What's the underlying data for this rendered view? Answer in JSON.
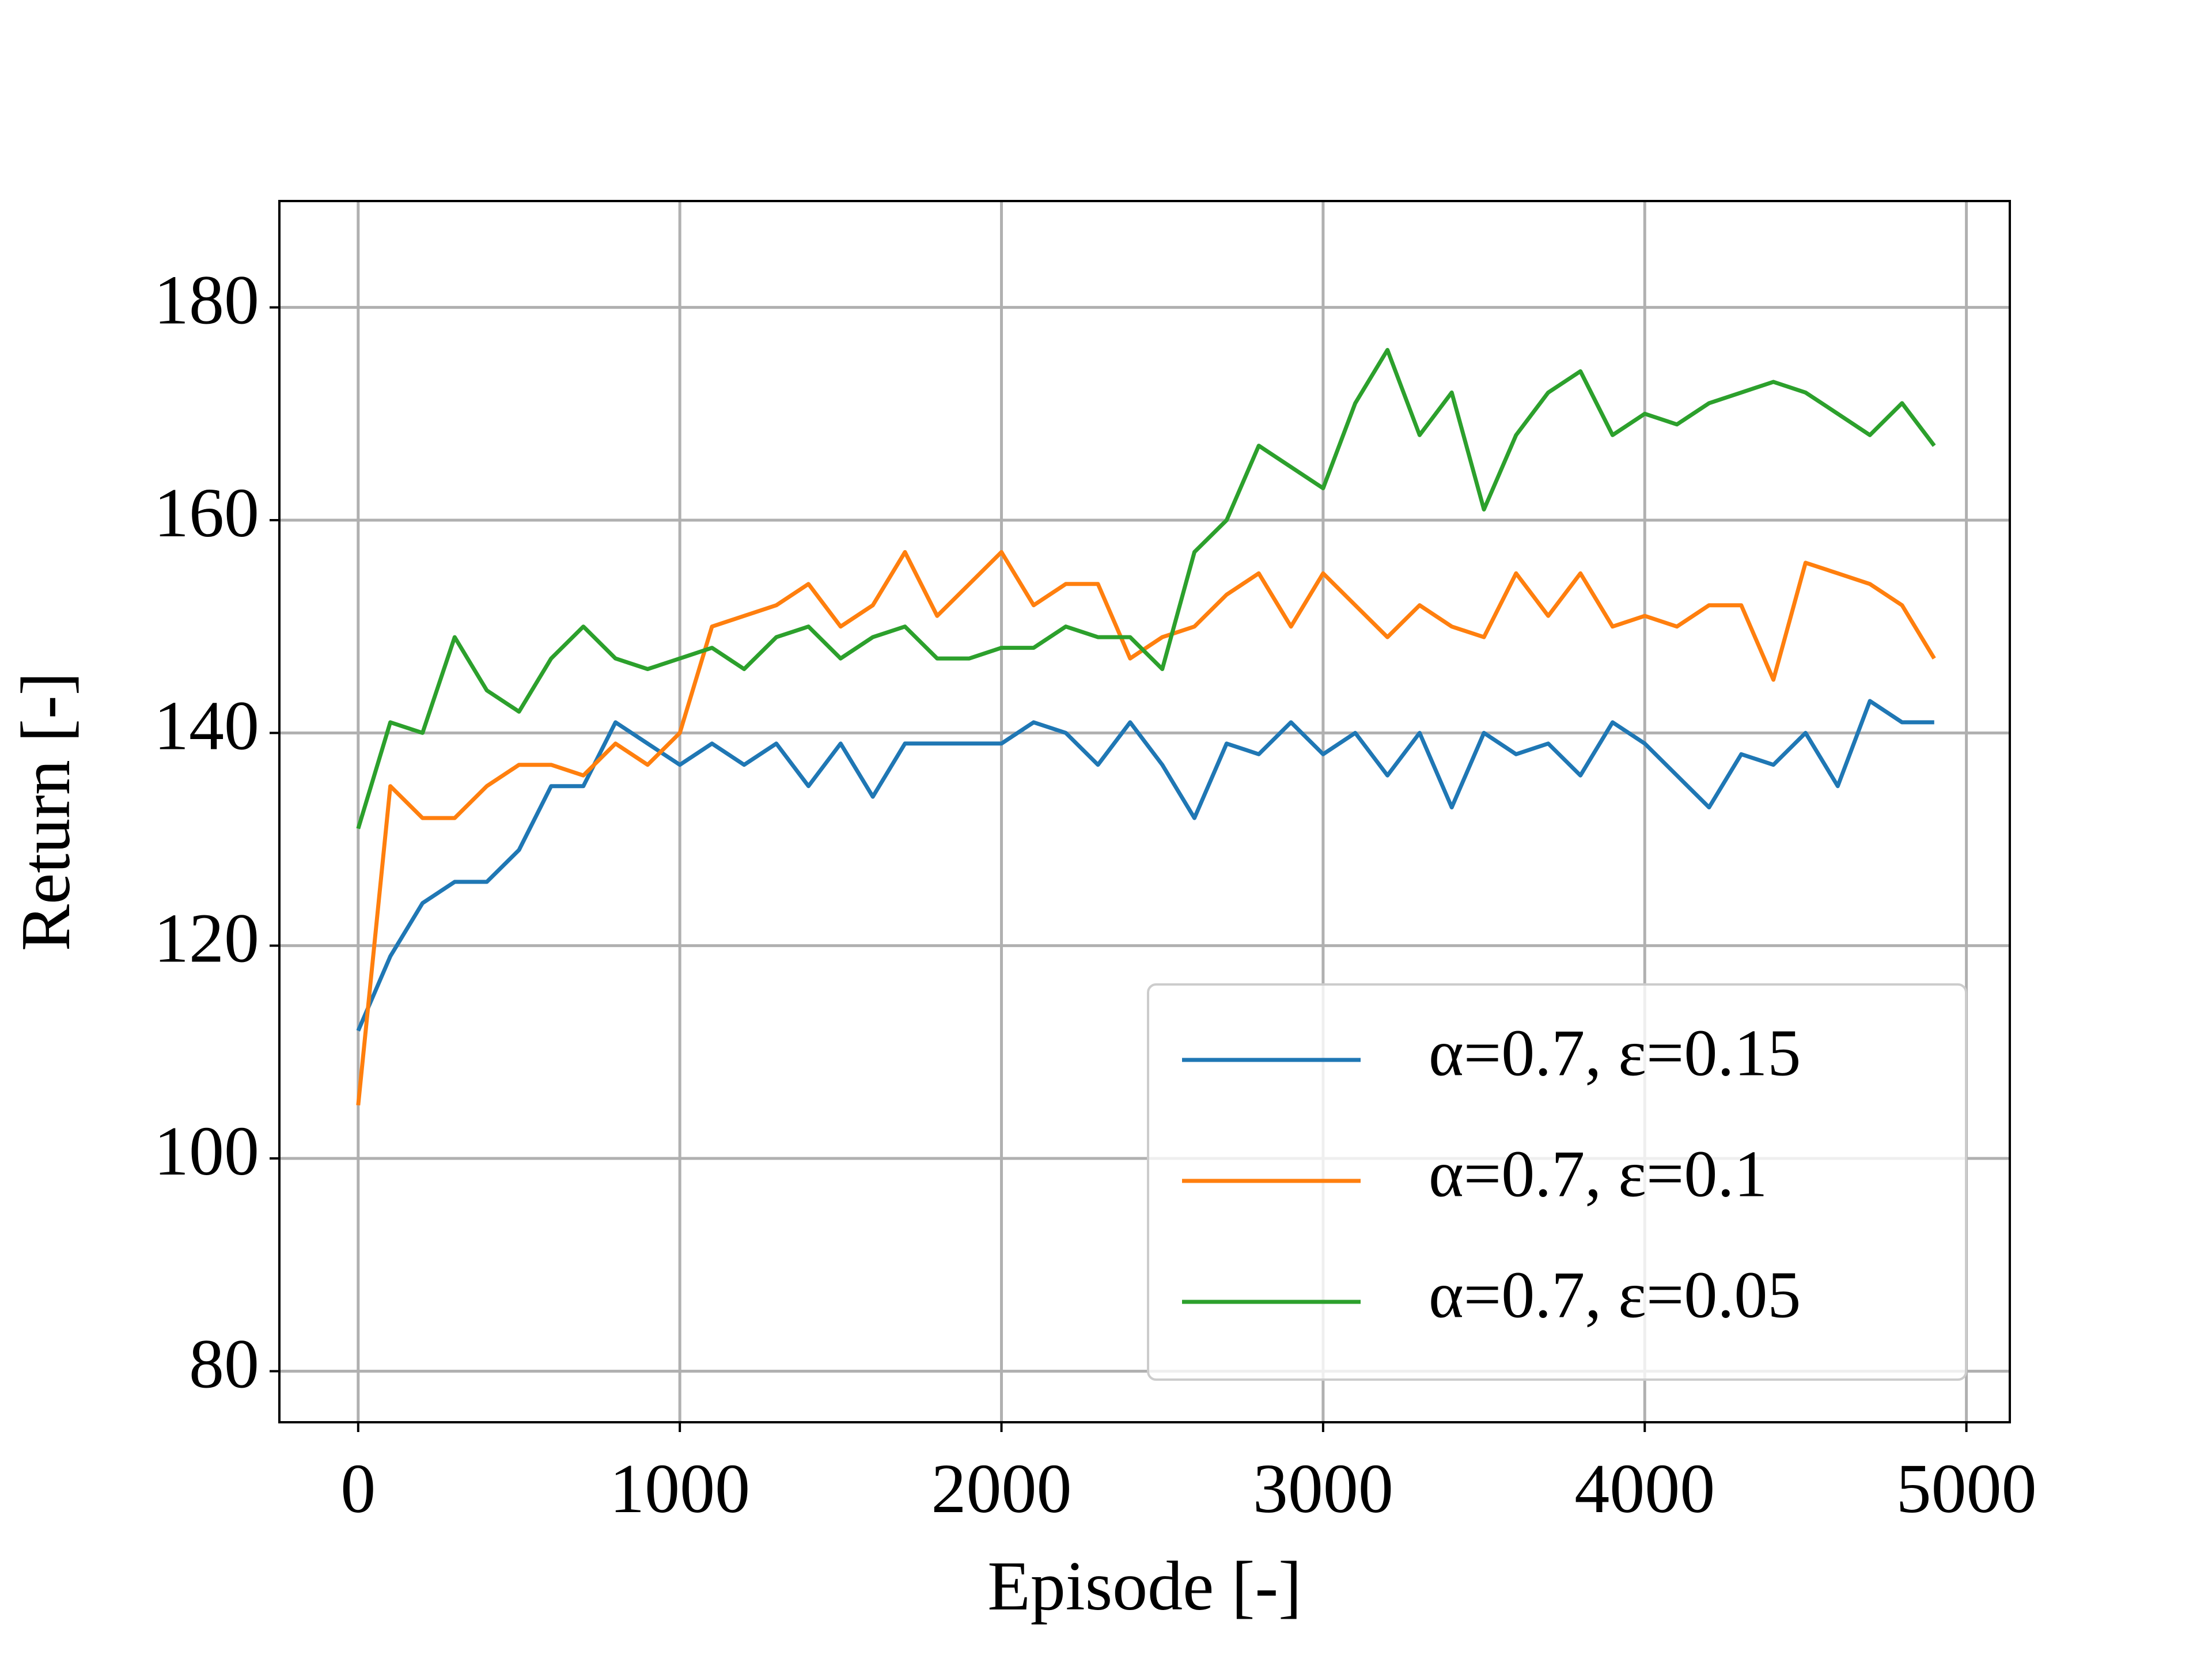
{
  "chart_data": {
    "type": "line",
    "x_label": "Episode [-]",
    "y_label": "Return [-]",
    "x": [
      0,
      100,
      200,
      300,
      400,
      500,
      600,
      700,
      800,
      900,
      1000,
      1100,
      1200,
      1300,
      1400,
      1500,
      1600,
      1700,
      1800,
      1900,
      2000,
      2100,
      2200,
      2300,
      2400,
      2500,
      2600,
      2700,
      2800,
      2900,
      3000,
      3100,
      3200,
      3300,
      3400,
      3500,
      3600,
      3700,
      3800,
      3900,
      4000,
      4100,
      4200,
      4300,
      4400,
      4500,
      4600,
      4700,
      4800,
      4900
    ],
    "series": [
      {
        "name": "α=0.7, ε=0.15",
        "color": "#1f77b4",
        "values": [
          112,
          119,
          124,
          126,
          126,
          129,
          135,
          135,
          141,
          139,
          137,
          139,
          137,
          139,
          135,
          139,
          134,
          139,
          139,
          139,
          139,
          141,
          140,
          137,
          141,
          137,
          132,
          139,
          138,
          141,
          138,
          140,
          136,
          140,
          133,
          140,
          138,
          139,
          136,
          141,
          139,
          136,
          133,
          138,
          137,
          140,
          135,
          143,
          141,
          141
        ]
      },
      {
        "name": "α=0.7, ε=0.1",
        "color": "#ff7f0e",
        "values": [
          105,
          135,
          132,
          132,
          135,
          137,
          137,
          136,
          139,
          137,
          140,
          150,
          151,
          152,
          154,
          150,
          152,
          157,
          151,
          154,
          157,
          152,
          154,
          154,
          147,
          149,
          150,
          153,
          155,
          150,
          155,
          152,
          149,
          152,
          150,
          149,
          155,
          151,
          155,
          150,
          151,
          150,
          152,
          152,
          145,
          156,
          155,
          154,
          152,
          147
        ]
      },
      {
        "name": "α=0.7, ε=0.05",
        "color": "#2ca02c",
        "values": [
          131,
          141,
          140,
          149,
          144,
          142,
          147,
          150,
          147,
          146,
          147,
          148,
          146,
          149,
          150,
          147,
          149,
          150,
          147,
          147,
          148,
          148,
          150,
          149,
          149,
          146,
          157,
          160,
          167,
          165,
          163,
          171,
          176,
          168,
          172,
          161,
          168,
          172,
          174,
          168,
          170,
          169,
          171,
          172,
          173,
          172,
          170,
          168,
          171,
          167
        ]
      }
    ],
    "xlim": [
      -245,
      5135
    ],
    "xticks": [
      0,
      1000,
      2000,
      3000,
      4000,
      5000
    ],
    "ylim": [
      75.2,
      190
    ],
    "yticks": [
      80,
      100,
      120,
      140,
      160,
      180
    ],
    "grid": true,
    "legend": "lower right"
  }
}
